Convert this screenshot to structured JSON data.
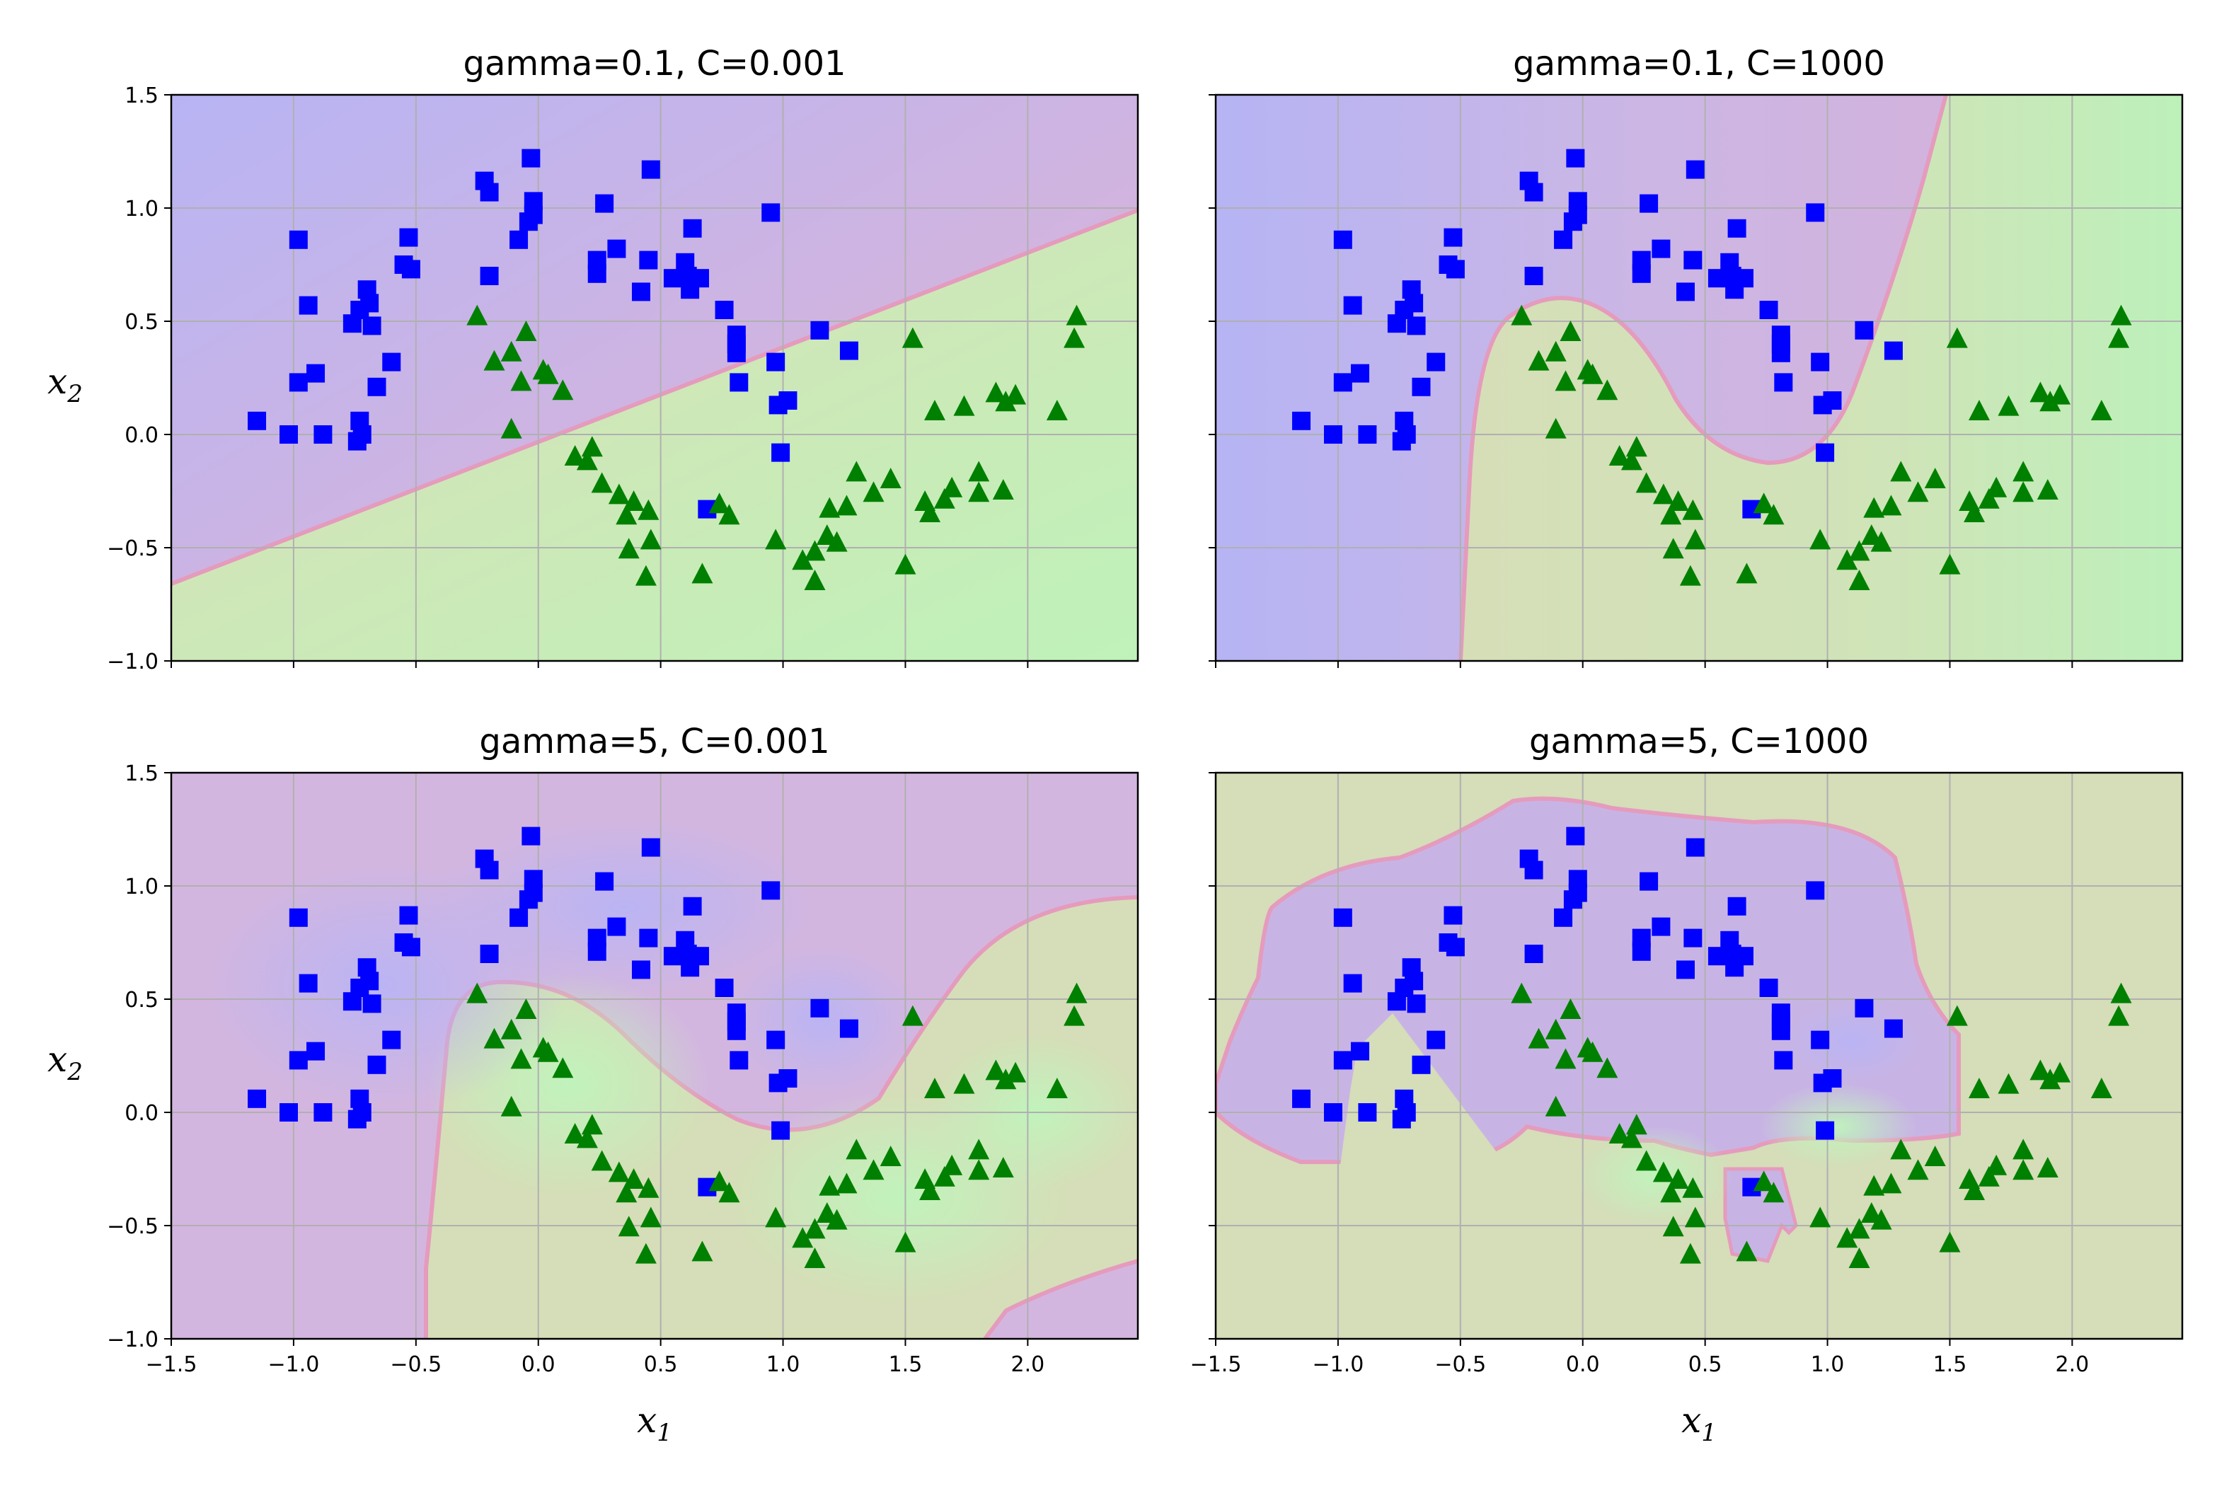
{
  "chart_data": [
    {
      "type": "scatter",
      "title": "gamma=0.1, C=0.001",
      "xlabel": "",
      "ylabel": "x2",
      "xlim": [
        -1.5,
        2.45
      ],
      "ylim": [
        -1.0,
        1.5
      ],
      "show_xticklabels": false,
      "show_yticklabels": true,
      "grid": true,
      "boundary": "linear",
      "legend": "none"
    },
    {
      "type": "scatter",
      "title": "gamma=0.1, C=1000",
      "xlabel": "",
      "ylabel": "",
      "xlim": [
        -1.5,
        2.45
      ],
      "ylim": [
        -1.0,
        1.5
      ],
      "show_xticklabels": false,
      "show_yticklabels": false,
      "grid": true,
      "boundary": "smooth-moon",
      "legend": "none"
    },
    {
      "type": "scatter",
      "title": "gamma=5, C=0.001",
      "xlabel": "x1",
      "ylabel": "x2",
      "xlim": [
        -1.5,
        2.45
      ],
      "ylim": [
        -1.0,
        1.5
      ],
      "show_xticklabels": true,
      "show_yticklabels": true,
      "grid": true,
      "boundary": "moon-gap",
      "legend": "none"
    },
    {
      "type": "scatter",
      "title": "gamma=5, C=1000",
      "xlabel": "x1",
      "ylabel": "",
      "xlim": [
        -1.5,
        2.45
      ],
      "ylim": [
        -1.0,
        1.5
      ],
      "show_xticklabels": true,
      "show_yticklabels": false,
      "grid": true,
      "boundary": "tight-island",
      "legend": "none"
    }
  ],
  "shared": {
    "xticks": [
      -1.5,
      -1.0,
      -0.5,
      0.0,
      0.5,
      1.0,
      1.5,
      2.0
    ],
    "xtick_labels": [
      "−1.5",
      "−1.0",
      "−0.5",
      "0.0",
      "0.5",
      "1.0",
      "1.5",
      "2.0"
    ],
    "yticks": [
      -1.0,
      -0.5,
      0.0,
      0.5,
      1.0,
      1.5
    ],
    "ytick_labels": [
      "−1.0",
      "−0.5",
      "0.0",
      "0.5",
      "1.0",
      "1.5"
    ],
    "x_axis_label": {
      "base": "x",
      "sub": "1"
    },
    "y_axis_label": {
      "base": "x",
      "sub": "2"
    },
    "series": [
      {
        "marker": "square",
        "color": "#0000ff",
        "points": [
          [
            -1.15,
            0.06
          ],
          [
            -1.02,
            0.0
          ],
          [
            -0.98,
            0.86
          ],
          [
            -0.98,
            0.23
          ],
          [
            -0.94,
            0.57
          ],
          [
            -0.91,
            0.27
          ],
          [
            -0.88,
            0.0
          ],
          [
            -0.76,
            0.49
          ],
          [
            -0.73,
            0.55
          ],
          [
            -0.73,
            0.06
          ],
          [
            -0.74,
            -0.03
          ],
          [
            -0.72,
            0.0
          ],
          [
            -0.7,
            0.64
          ],
          [
            -0.69,
            0.58
          ],
          [
            -0.68,
            0.48
          ],
          [
            -0.66,
            0.21
          ],
          [
            -0.6,
            0.32
          ],
          [
            -0.55,
            0.75
          ],
          [
            -0.53,
            0.87
          ],
          [
            -0.52,
            0.73
          ],
          [
            -0.22,
            1.12
          ],
          [
            -0.2,
            1.07
          ],
          [
            -0.2,
            0.7
          ],
          [
            -0.08,
            0.86
          ],
          [
            -0.04,
            0.94
          ],
          [
            -0.03,
            1.22
          ],
          [
            -0.02,
            0.97
          ],
          [
            -0.02,
            1.03
          ],
          [
            0.24,
            0.71
          ],
          [
            0.24,
            0.77
          ],
          [
            0.27,
            1.02
          ],
          [
            0.32,
            0.82
          ],
          [
            0.42,
            0.63
          ],
          [
            0.45,
            0.77
          ],
          [
            0.46,
            1.17
          ],
          [
            0.55,
            0.69
          ],
          [
            0.6,
            0.76
          ],
          [
            0.61,
            0.7
          ],
          [
            0.62,
            0.64
          ],
          [
            0.63,
            0.91
          ],
          [
            0.66,
            0.69
          ],
          [
            0.69,
            -0.33
          ],
          [
            0.76,
            0.55
          ],
          [
            0.81,
            0.4
          ],
          [
            0.81,
            0.44
          ],
          [
            0.81,
            0.36
          ],
          [
            0.82,
            0.23
          ],
          [
            0.95,
            0.98
          ],
          [
            0.97,
            0.32
          ],
          [
            0.98,
            0.13
          ],
          [
            0.99,
            -0.08
          ],
          [
            1.02,
            0.15
          ],
          [
            1.15,
            0.46
          ],
          [
            1.27,
            0.37
          ]
        ]
      },
      {
        "marker": "triangle",
        "color": "#008000",
        "points": [
          [
            -0.25,
            0.52
          ],
          [
            -0.18,
            0.32
          ],
          [
            -0.11,
            0.36
          ],
          [
            -0.11,
            0.02
          ],
          [
            -0.07,
            0.23
          ],
          [
            -0.05,
            0.45
          ],
          [
            0.02,
            0.28
          ],
          [
            0.04,
            0.26
          ],
          [
            0.1,
            0.19
          ],
          [
            0.15,
            -0.1
          ],
          [
            0.2,
            -0.12
          ],
          [
            0.22,
            -0.06
          ],
          [
            0.26,
            -0.22
          ],
          [
            0.33,
            -0.27
          ],
          [
            0.36,
            -0.36
          ],
          [
            0.37,
            -0.51
          ],
          [
            0.39,
            -0.3
          ],
          [
            0.44,
            -0.63
          ],
          [
            0.45,
            -0.34
          ],
          [
            0.46,
            -0.47
          ],
          [
            0.67,
            -0.62
          ],
          [
            0.74,
            -0.31
          ],
          [
            0.78,
            -0.36
          ],
          [
            0.97,
            -0.47
          ],
          [
            1.08,
            -0.56
          ],
          [
            1.13,
            -0.52
          ],
          [
            1.13,
            -0.65
          ],
          [
            1.18,
            -0.45
          ],
          [
            1.19,
            -0.33
          ],
          [
            1.22,
            -0.48
          ],
          [
            1.26,
            -0.32
          ],
          [
            1.3,
            -0.17
          ],
          [
            1.37,
            -0.26
          ],
          [
            1.44,
            -0.2
          ],
          [
            1.5,
            -0.58
          ],
          [
            1.53,
            0.42
          ],
          [
            1.58,
            -0.3
          ],
          [
            1.6,
            -0.35
          ],
          [
            1.62,
            0.1
          ],
          [
            1.66,
            -0.29
          ],
          [
            1.69,
            -0.24
          ],
          [
            1.74,
            0.12
          ],
          [
            1.8,
            -0.17
          ],
          [
            1.8,
            -0.26
          ],
          [
            1.87,
            0.18
          ],
          [
            1.9,
            -0.25
          ],
          [
            1.91,
            0.14
          ],
          [
            1.95,
            0.17
          ],
          [
            2.12,
            0.1
          ],
          [
            2.19,
            0.42
          ],
          [
            2.2,
            0.52
          ]
        ]
      }
    ],
    "region_colors": {
      "square_side": "#b8b2f0",
      "square_side_mid": "#cdb6e0",
      "boundary_band": "#dea0c0",
      "triangle_side_mid": "#d3deb6",
      "triangle_side": "#c2f0b8"
    }
  }
}
